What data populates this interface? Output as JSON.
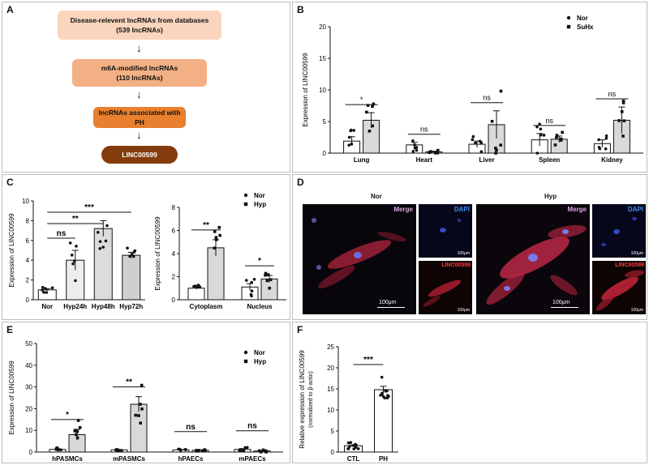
{
  "panels": {
    "A": "A",
    "B": "B",
    "C": "C",
    "D": "D",
    "E": "E",
    "F": "F"
  },
  "flow": {
    "box1_line1": "Disease-relevent lncRNAs from databases",
    "box1_line2": "(539 lncRNAs)",
    "box2_line1": "m6A-modified lncRNAs",
    "box2_line2": "(110 lncRNAs)",
    "box3": "lncRNAs associated with PH",
    "box4": "LINC00599",
    "arrow": "↓"
  },
  "micro": {
    "nor_title": "Nor",
    "hyp_title": "Hyp",
    "merge": "Merge",
    "dapi": "DAPI",
    "linc": "LINC00599",
    "scale_big": "100μm",
    "scale_small": "100μm"
  },
  "chart_data": [
    {
      "panel": "B",
      "type": "bar",
      "ylabel": "Expression of LINC00599",
      "ylim": [
        0,
        20
      ],
      "yticks": [
        0,
        5,
        10,
        15,
        20
      ],
      "categories": [
        "Lung",
        "Heart",
        "Liver",
        "Spleen",
        "Kidney"
      ],
      "series": [
        {
          "name": "Nor",
          "values": [
            1.9,
            1.3,
            1.4,
            2.1,
            1.5
          ],
          "sem": [
            0.7,
            0.4,
            0.5,
            1.0,
            0.6
          ]
        },
        {
          "name": "SuHx",
          "values": [
            5.2,
            0.2,
            4.5,
            2.2,
            5.2
          ],
          "sem": [
            1.2,
            0.1,
            2.2,
            0.5,
            2.1
          ]
        }
      ],
      "annotations": [
        "*",
        "ns",
        "ns",
        "ns",
        "ns"
      ],
      "legend": "top-right"
    },
    {
      "panel": "C-left",
      "type": "bar",
      "ylabel": "Expression of LINC00599",
      "ylim": [
        0,
        10
      ],
      "yticks": [
        0,
        2,
        4,
        6,
        8,
        10
      ],
      "categories": [
        "Nor",
        "Hyp24h",
        "Hyp48h",
        "Hyp72h"
      ],
      "values": [
        1.0,
        4.0,
        7.2,
        4.5
      ],
      "sem": [
        0.1,
        1.0,
        0.8,
        0.3
      ],
      "annotations": [
        "ns",
        "**",
        "***"
      ]
    },
    {
      "panel": "C-right",
      "type": "bar",
      "ylabel": "Expression of LINC00599",
      "ylim": [
        0,
        8
      ],
      "yticks": [
        0,
        2,
        4,
        6,
        8
      ],
      "categories": [
        "Cytoplasm",
        "Nucleus"
      ],
      "series": [
        {
          "name": "Nor",
          "values": [
            1.0,
            1.1
          ],
          "sem": [
            0.1,
            0.3
          ]
        },
        {
          "name": "Hyp",
          "values": [
            4.5,
            1.8
          ],
          "sem": [
            0.7,
            0.3
          ]
        }
      ],
      "annotations": [
        "**",
        "*"
      ],
      "legend": "top-right"
    },
    {
      "panel": "E",
      "type": "bar",
      "ylabel": "Expression of LINC00599",
      "ylim": [
        0,
        50
      ],
      "yticks": [
        0,
        10,
        20,
        30,
        40,
        50
      ],
      "categories": [
        "hPASMCs",
        "mPASMCs",
        "hPAECs",
        "mPAECs"
      ],
      "series": [
        {
          "name": "Nor",
          "values": [
            1.2,
            1.0,
            1.0,
            1.2
          ],
          "sem": [
            0.3,
            0.2,
            0.2,
            0.4
          ]
        },
        {
          "name": "Hyp",
          "values": [
            8.0,
            22.0,
            0.8,
            0.5
          ],
          "sem": [
            2.5,
            3.5,
            0.2,
            0.2
          ]
        }
      ],
      "annotations": [
        "*",
        "**",
        "ns",
        "ns"
      ],
      "legend": "top-right"
    },
    {
      "panel": "F",
      "type": "bar",
      "ylabel": "Relative expression of LINC00599",
      "ylabel2": "(normalized to β-actin)",
      "ylim": [
        0,
        25
      ],
      "yticks": [
        0,
        5,
        10,
        15,
        20,
        25
      ],
      "categories": [
        "CTL",
        "PH"
      ],
      "values": [
        1.5,
        14.8
      ],
      "sem": [
        0.2,
        0.8
      ],
      "annotations": [
        "***"
      ]
    }
  ]
}
